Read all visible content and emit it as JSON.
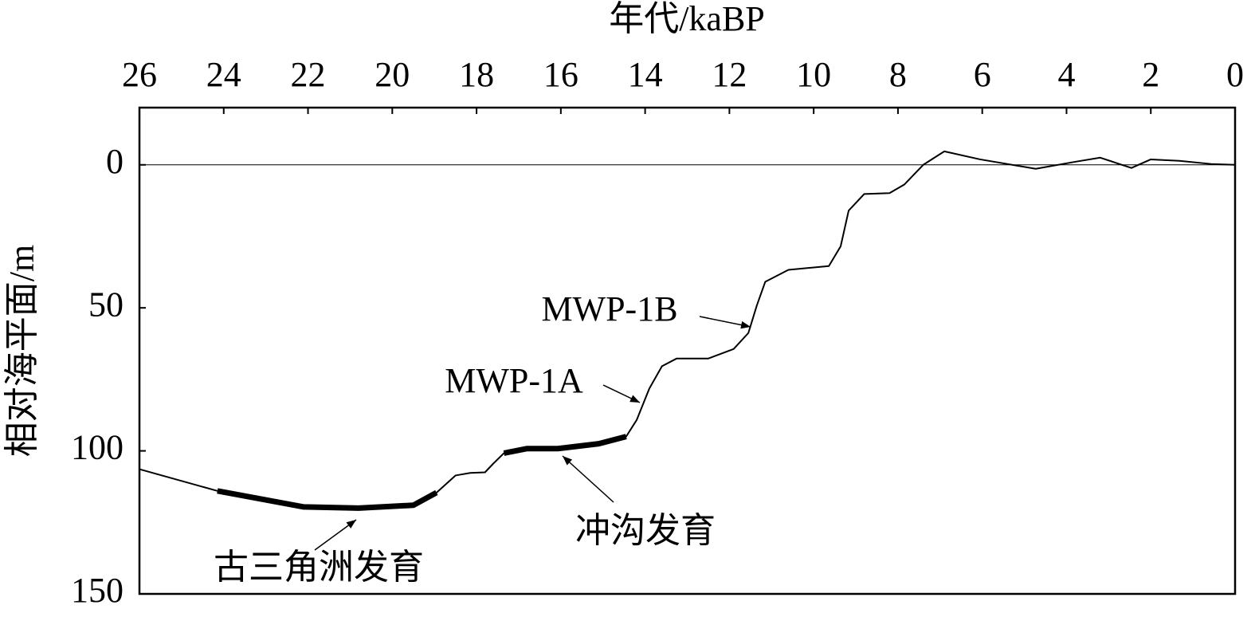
{
  "chart_data": {
    "type": "line",
    "x_label": "年代/kaBP",
    "y_label": "相对海平面/m",
    "x": [
      26,
      24.15,
      22.1,
      20.8,
      19.5,
      18.95,
      18.5,
      18.15,
      17.8,
      17.6,
      17.35,
      16.8,
      16.07,
      15.1,
      14.45,
      14.2,
      13.9,
      13.6,
      13.25,
      12.5,
      11.9,
      11.55,
      11.35,
      11.15,
      10.6,
      9.64,
      9.36,
      9.17,
      8.8,
      8.2,
      7.85,
      7.4,
      6.9,
      6.05,
      4.73,
      3.78,
      3.2,
      2.46,
      2,
      1.32,
      0.57,
      0
    ],
    "series": [
      {
        "color": "#000000",
        "width": 2,
        "values": [
          106.4,
          114,
          119.6,
          120,
          119,
          114.6,
          108.6,
          107.7,
          107.5,
          104.4,
          100.8,
          99.2,
          99.2,
          97.5,
          95,
          89.2,
          78.2,
          70.4,
          67.7,
          67.7,
          64.4,
          58.8,
          49.2,
          40.9,
          36.7,
          35.4,
          28.5,
          16,
          10.2,
          9.9,
          6.9,
          0,
          -4.7,
          -1.9,
          1.4,
          -1.1,
          -2.5,
          1.1,
          -1.9,
          -1.4,
          -0.3,
          0
        ]
      },
      {
        "color": "#000000",
        "width": 7,
        "values": [
          null,
          114,
          119.6,
          120,
          119,
          114.6,
          null,
          null,
          null,
          null,
          100.8,
          99.2,
          99.2,
          97.5,
          95,
          null,
          null,
          null,
          null,
          null,
          null,
          null,
          null,
          null,
          null,
          null,
          null,
          null,
          null,
          null,
          null,
          null,
          null,
          null,
          null,
          null,
          null,
          null,
          null,
          null,
          null,
          null
        ]
      }
    ],
    "xlim": [
      26,
      0
    ],
    "xticks": [
      26,
      24,
      22,
      20,
      18,
      16,
      14,
      12,
      10,
      8,
      6,
      4,
      2,
      0
    ],
    "ylim": [
      -20,
      150
    ],
    "yticks": [
      0,
      50,
      100,
      150
    ],
    "y_inverted": true,
    "zero_line": true,
    "annotations": [
      "MWP-1B",
      "MWP-1A",
      "冲沟发育",
      "古三角洲发育"
    ]
  }
}
